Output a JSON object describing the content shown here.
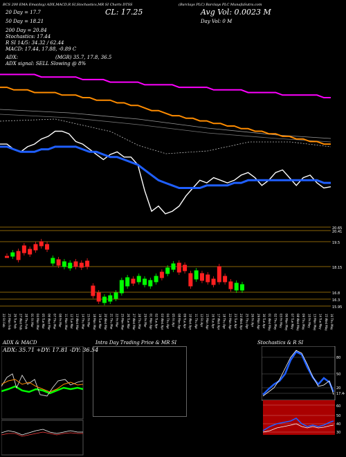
{
  "header": {
    "top_line": "(Barclays PLC) Barclays PLC MunafaSutra.com",
    "indicators_line": "BCS 200 EMA Ema(day) ADX,MACD,R SI,Stochastics,MR SI Charts DTSS",
    "cl": "CL: 17.25",
    "avg_vol": "Avg Vol: 0.0023 M",
    "day_vol": "Day Vol: 0 M",
    "dma20": "20 Day = 17.7",
    "dma50": "50 Day = 18.21",
    "dma200": "200 Day = 20.84",
    "stochastics": "Stochastics: 17.44",
    "rsi": "R SI 14/5: 34.32 / 62.44",
    "macd": "MACD: 17.44, 17.88, -0.89 C",
    "adx": "ADX:",
    "mrsi": "(MGR) 35.7, 17.8, 36.5",
    "adx_signal": "ADX signal: SELL Slowing @ 8%"
  },
  "chart_data": [
    {
      "type": "line",
      "name": "price-with-emas",
      "series": [
        {
          "name": "price",
          "color": "#ffffff",
          "values": [
            18.9,
            18.9,
            18.7,
            18.6,
            18.8,
            18.9,
            19.1,
            19.2,
            19.4,
            19.4,
            19.3,
            19.0,
            18.9,
            18.7,
            18.5,
            18.3,
            18.5,
            18.6,
            18.4,
            18.4,
            18.1,
            17.1,
            16.3,
            16.5,
            16.2,
            16.3,
            16.5,
            16.9,
            17.2,
            17.5,
            17.4,
            17.6,
            17.5,
            17.4,
            17.5,
            17.7,
            17.8,
            17.6,
            17.3,
            17.5,
            17.8,
            17.9,
            17.6,
            17.3,
            17.6,
            17.7,
            17.4,
            17.2,
            17.25
          ]
        },
        {
          "name": "EMA 20",
          "color": "#1f5fff",
          "values": [
            18.8,
            18.8,
            18.7,
            18.6,
            18.6,
            18.6,
            18.7,
            18.7,
            18.8,
            18.8,
            18.8,
            18.8,
            18.7,
            18.6,
            18.6,
            18.5,
            18.4,
            18.4,
            18.3,
            18.2,
            18.1,
            17.9,
            17.7,
            17.5,
            17.4,
            17.3,
            17.2,
            17.2,
            17.2,
            17.2,
            17.3,
            17.3,
            17.3,
            17.3,
            17.4,
            17.4,
            17.5,
            17.5,
            17.5,
            17.5,
            17.5,
            17.5,
            17.5,
            17.5,
            17.5,
            17.5,
            17.5,
            17.4,
            17.4
          ]
        },
        {
          "name": "EMA 200",
          "color": "#ff00ff",
          "values": [
            21.6,
            21.6,
            21.6,
            21.6,
            21.6,
            21.6,
            21.5,
            21.5,
            21.5,
            21.5,
            21.5,
            21.5,
            21.4,
            21.4,
            21.4,
            21.4,
            21.3,
            21.3,
            21.3,
            21.3,
            21.3,
            21.2,
            21.2,
            21.2,
            21.2,
            21.2,
            21.1,
            21.1,
            21.1,
            21.1,
            21.1,
            21.0,
            21.0,
            21.0,
            21.0,
            21.0,
            20.9,
            20.9,
            20.9,
            20.9,
            20.9,
            20.8,
            20.8,
            20.8,
            20.8,
            20.8,
            20.8,
            20.7,
            20.7
          ]
        },
        {
          "name": "EMA 100",
          "color": "#ff8c00",
          "values": [
            21.1,
            21.1,
            21.0,
            21.0,
            21.0,
            20.9,
            20.9,
            20.9,
            20.9,
            20.8,
            20.8,
            20.8,
            20.7,
            20.7,
            20.6,
            20.6,
            20.6,
            20.5,
            20.5,
            20.4,
            20.4,
            20.3,
            20.2,
            20.2,
            20.1,
            20.0,
            20.0,
            19.9,
            19.9,
            19.8,
            19.8,
            19.7,
            19.7,
            19.6,
            19.6,
            19.5,
            19.5,
            19.4,
            19.4,
            19.3,
            19.3,
            19.2,
            19.2,
            19.1,
            19.1,
            19.0,
            19.0,
            18.9,
            18.9
          ]
        }
      ]
    },
    {
      "type": "bar",
      "name": "candles",
      "ytick_labels": [
        "20.65",
        "20.41",
        "19.5",
        "18.15",
        "16.8",
        "16.3",
        "15.95"
      ],
      "categories": [
        "22 Fri Feb",
        "25 Mon Feb",
        "26 Tue Feb",
        "27 Wed Feb",
        "28 Thu Feb",
        "01 Fri Mar",
        "04 Mon Mar",
        "05 Tue Mar",
        "06 Wed Mar",
        "07 Thu Mar",
        "08 Fri Mar",
        "11 Mon Mar",
        "12 Tue Mar",
        "13 Wed Mar",
        "14 Thu Mar",
        "15 Fri Mar",
        "18 Mon Mar",
        "19 Tue Mar",
        "20 Wed Mar",
        "21 Thu Mar",
        "22 Fri Mar",
        "25 Mon Mar",
        "26 Tue Mar",
        "27 Wed Mar",
        "28 Thu Mar",
        "29 Fri Mar",
        "01 Mon Apr",
        "02 Tue Apr",
        "03 Wed Apr",
        "04 Thu Apr",
        "05 Fri Apr",
        "08 Mon Apr",
        "09 Tue Apr",
        "10 Wed Apr",
        "11 Thu Apr",
        "12 Fri Apr",
        "15 Mon Apr",
        "16 Tue Apr",
        "17 Wed Apr",
        "18 Thu Apr",
        "22 Mon Apr",
        "23 Tue Apr",
        "24 Wed Apr",
        "25 Thu Apr",
        "26 Fri Apr",
        "29 Mon Apr",
        "30 Tue Apr",
        "01 Wed May",
        "02 Thu May",
        "03 Fri May",
        "06 Mon May",
        "07 Tue May",
        "08 Wed May",
        "09 Thu May",
        "10 Fri May",
        "13 Mon May",
        "14 Tue May",
        "15 Wed May",
        "16 Thu May"
      ]
    },
    {
      "type": "line",
      "name": "ADX & MACD"
    },
    {
      "type": "line",
      "name": "Stochastics & R SI",
      "ytick_labels": [
        "80",
        "50",
        "20",
        "17.44"
      ]
    }
  ],
  "panels": {
    "adx_title": "ADX & MACD",
    "adx_values": "ADX: 35.71 +DY: 17.81 -DY: 36.54",
    "intraday_title": "Intra Day Trading Price & MR SI",
    "stoch_title": "Stochastics & R SI",
    "rsi_axis": [
      "60",
      "50",
      "40",
      "30"
    ]
  }
}
